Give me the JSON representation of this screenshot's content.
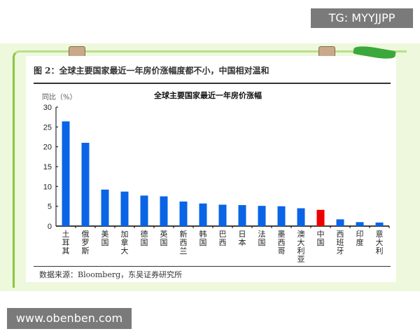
{
  "figure_title": "图 2：全球主要国家最近一年房价涨幅度都不小，中国相对温和",
  "source": "数据来源：Bloomberg，东吴证券研究所",
  "watermark_tg": "TG: MYYJJPP",
  "watermark_site": "www.obenben.com",
  "colors": {
    "bar": "#0a64e6",
    "highlight": "#ee0000",
    "background": "#eef8dc"
  },
  "chart_data": {
    "type": "bar",
    "title": "全球主要国家最近一年房价涨幅",
    "ylabel": "同比（%）",
    "xlabel": "",
    "ylim": [
      0,
      30
    ],
    "yticks": [
      0,
      5,
      10,
      15,
      20,
      25,
      30
    ],
    "grid": false,
    "categories": [
      "土耳其",
      "俄罗斯",
      "美国",
      "加拿大",
      "德国",
      "英国",
      "新西兰",
      "韩国",
      "巴西",
      "日本",
      "法国",
      "墨西哥",
      "澳大利亚",
      "中国",
      "西班牙",
      "印度",
      "意大利"
    ],
    "values": [
      26.4,
      21.0,
      9.2,
      8.7,
      7.7,
      7.5,
      6.2,
      5.7,
      5.4,
      5.3,
      5.1,
      5.0,
      4.5,
      4.1,
      1.7,
      1.0,
      0.9
    ],
    "highlight": "中国"
  }
}
